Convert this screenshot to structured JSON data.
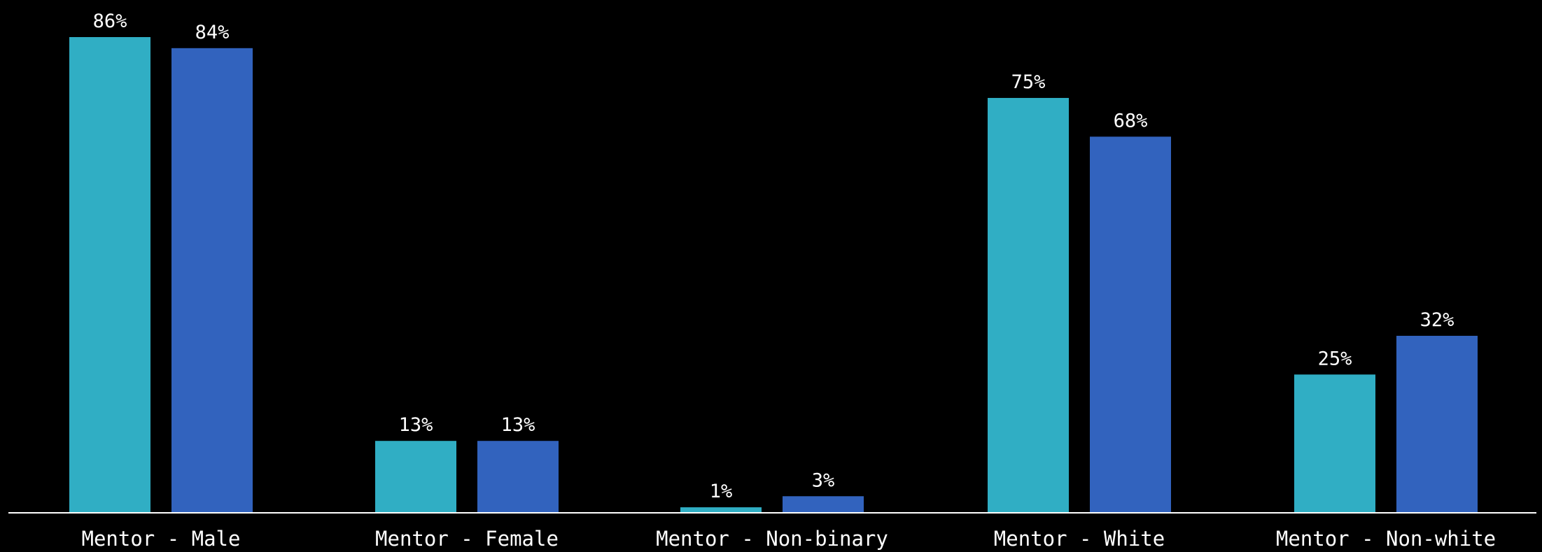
{
  "chart_data": {
    "type": "bar",
    "categories": [
      "Mentor - Male",
      "Mentor - Female",
      "Mentor - Non-binary",
      "Mentor - White",
      "Mentor - Non-white"
    ],
    "series": [
      {
        "values": [
          86,
          13,
          1,
          75,
          25
        ],
        "labels": [
          "86%",
          "13%",
          "1%",
          "75%",
          "25%"
        ]
      },
      {
        "values": [
          84,
          13,
          3,
          68,
          32
        ],
        "labels": [
          "84%",
          "13%",
          "3%",
          "68%",
          "32%"
        ]
      }
    ],
    "ylim": [
      0,
      100
    ],
    "grid": false,
    "unit": "%"
  },
  "colors": {
    "background": "#000000",
    "series": [
      "#30AEC4",
      "#3263BE"
    ],
    "axis": "#ffffff",
    "text": "#ffffff"
  }
}
